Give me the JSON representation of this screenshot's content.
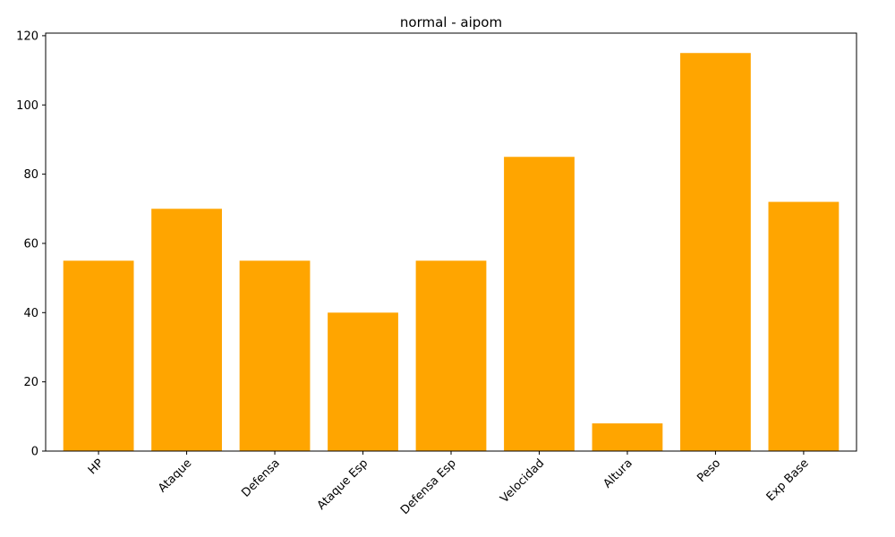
{
  "chart_data": {
    "type": "bar",
    "title": "normal - aipom",
    "xlabel": "",
    "ylabel": "",
    "categories": [
      "HP",
      "Ataque",
      "Defensa",
      "Ataque Esp",
      "Defensa Esp",
      "Velocidad",
      "Altura",
      "Peso",
      "Exp Base"
    ],
    "values": [
      55,
      70,
      55,
      40,
      55,
      85,
      8,
      115,
      72
    ],
    "ylim": [
      0,
      120.75
    ],
    "yticks": [
      0,
      20,
      40,
      60,
      80,
      100,
      120
    ],
    "bar_color": "#FFA500",
    "grid": false,
    "x_tick_rotation_deg": 45
  }
}
